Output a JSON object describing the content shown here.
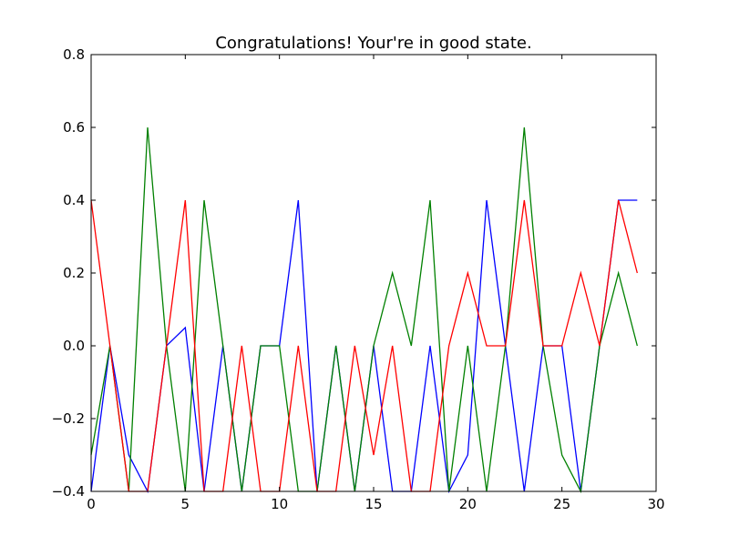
{
  "chart_data": {
    "type": "line",
    "title": "Congratulations! Your're in good state.",
    "xlabel": "",
    "ylabel": "",
    "xlim": [
      0,
      30
    ],
    "ylim": [
      -0.4,
      0.8
    ],
    "xticks": [
      0,
      5,
      10,
      15,
      20,
      25,
      30
    ],
    "yticks": [
      -0.4,
      -0.2,
      0.0,
      0.2,
      0.4,
      0.6,
      0.8
    ],
    "xtick_labels": [
      "0",
      "5",
      "10",
      "15",
      "20",
      "25",
      "30"
    ],
    "ytick_labels": [
      "−0.4",
      "−0.2",
      "0.0",
      "0.2",
      "0.4",
      "0.6",
      "0.8"
    ],
    "grid": false,
    "x": [
      0,
      1,
      2,
      3,
      4,
      5,
      6,
      7,
      8,
      9,
      10,
      11,
      12,
      13,
      14,
      15,
      16,
      17,
      18,
      19,
      20,
      21,
      22,
      23,
      24,
      25,
      26,
      27,
      28,
      29
    ],
    "series": [
      {
        "color": "#0000ff",
        "values": [
          -0.4,
          0.0,
          -0.3,
          -0.4,
          0.0,
          0.05,
          -0.4,
          0.0,
          -0.4,
          0.0,
          0.0,
          0.4,
          -0.4,
          0.0,
          -0.4,
          0.0,
          -0.4,
          -0.4,
          0.0,
          -0.4,
          -0.3,
          0.4,
          0.0,
          -0.4,
          0.0,
          0.0,
          -0.4,
          0.0,
          0.4,
          0.4
        ]
      },
      {
        "color": "#008000",
        "values": [
          -0.3,
          0.0,
          -0.4,
          0.6,
          0.0,
          -0.4,
          0.4,
          0.0,
          -0.4,
          0.0,
          0.0,
          -0.4,
          -0.4,
          0.0,
          -0.4,
          0.0,
          0.2,
          0.0,
          0.4,
          -0.4,
          0.0,
          -0.4,
          0.0,
          0.6,
          0.0,
          -0.3,
          -0.4,
          0.0,
          0.2,
          0.0
        ]
      },
      {
        "color": "#ff0000",
        "values": [
          0.4,
          0.0,
          -0.4,
          -0.4,
          0.0,
          0.4,
          -0.4,
          -0.4,
          0.0,
          -0.4,
          -0.4,
          0.0,
          -0.4,
          -0.4,
          0.0,
          -0.3,
          0.0,
          -0.4,
          -0.4,
          0.0,
          0.2,
          0.0,
          0.0,
          0.4,
          0.0,
          0.0,
          0.2,
          0.0,
          0.4,
          0.2
        ]
      }
    ]
  }
}
